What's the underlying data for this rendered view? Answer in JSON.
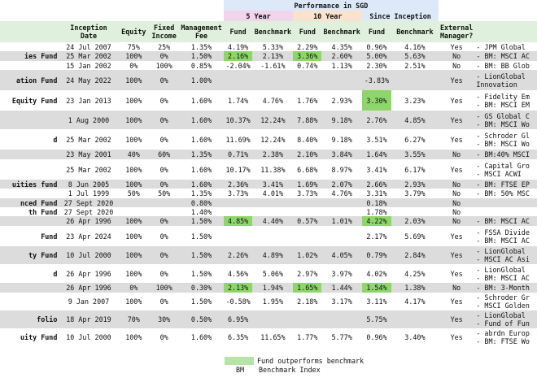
{
  "header": {
    "performance_title": "Performance in SGD",
    "period_5y": "5 Year",
    "period_10y": "10 Year",
    "period_since": "Since Inception",
    "col_inception": "Inception Date",
    "col_equity": "Equity",
    "col_fixed": "Fixed Income",
    "col_mgmt": "Management Fee",
    "col_fund": "Fund",
    "col_benchmark": "Benchmark",
    "col_external": "External Manager?"
  },
  "rows": [
    {
      "name": "",
      "date": "24 Jul 2007",
      "eq": "75%",
      "fi": "25%",
      "fee": "1.35%",
      "f5": "4.19%",
      "b5": "5.33%",
      "f10": "2.29%",
      "b10": "4.35%",
      "fs": "0.96%",
      "bs": "4.16%",
      "ext": "Yes",
      "notes": "- JPM Global ",
      "hl": [],
      "gray": false
    },
    {
      "name": "ies Fund",
      "date": "25 Mar 2002",
      "eq": "100%",
      "fi": "0%",
      "fee": "1.50%",
      "f5": "2.16%",
      "b5": "2.13%",
      "f10": "3.36%",
      "b10": "2.60%",
      "fs": "5.00%",
      "bs": "5.63%",
      "ext": "No",
      "notes": "- BM: MSCI AC",
      "hl": [
        "f5",
        "f10"
      ],
      "gray": true
    },
    {
      "name": "",
      "date": "15 Jan 2002",
      "eq": "0%",
      "fi": "100%",
      "fee": "0.85%",
      "f5": "-2.04%",
      "b5": "-1.61%",
      "f10": "0.74%",
      "b10": "1.13%",
      "fs": "2.30%",
      "bs": "2.51%",
      "ext": "No",
      "notes": "- BM: BB Glob",
      "hl": [],
      "gray": false
    },
    {
      "name": "ation Fund",
      "date": "24 May 2022",
      "eq": "100%",
      "fi": "0%",
      "fee": "1.00%",
      "f5": "",
      "b5": "",
      "f10": "",
      "b10": "",
      "fs": "-3.83%",
      "bs": "",
      "ext": "Yes",
      "notes": "- LionGlobal\nInnovation",
      "hl": [],
      "gray": true
    },
    {
      "name": "Equity Fund",
      "date": "23 Jan 2013",
      "eq": "100%",
      "fi": "0%",
      "fee": "1.60%",
      "f5": "1.74%",
      "b5": "4.76%",
      "f10": "1.76%",
      "b10": "2.93%",
      "fs": "3.30%",
      "bs": "3.23%",
      "ext": "Yes",
      "notes": "- Fidelity Em\n- BM: MSCI EM",
      "hl": [
        "fs"
      ],
      "gray": false
    },
    {
      "name": "",
      "date": "1 Aug 2000",
      "eq": "100%",
      "fi": "0%",
      "fee": "1.60%",
      "f5": "10.37%",
      "b5": "12.24%",
      "f10": "7.88%",
      "b10": "9.18%",
      "fs": "2.76%",
      "bs": "4.85%",
      "ext": "Yes",
      "notes": "- GS Global C\n- BM: MSCI Wo",
      "hl": [],
      "gray": true
    },
    {
      "name": "d",
      "date": "25 Mar 2002",
      "eq": "100%",
      "fi": "0%",
      "fee": "1.60%",
      "f5": "11.69%",
      "b5": "12.24%",
      "f10": "8.40%",
      "b10": "9.18%",
      "fs": "3.51%",
      "bs": "6.27%",
      "ext": "Yes",
      "notes": "- Schroder Gl\n- BM: MSCI Wo",
      "hl": [],
      "gray": false
    },
    {
      "name": "",
      "date": "23 May 2001",
      "eq": "40%",
      "fi": "60%",
      "fee": "1.35%",
      "f5": "0.71%",
      "b5": "2.38%",
      "f10": "2.10%",
      "b10": "3.84%",
      "fs": "1.64%",
      "bs": "3.55%",
      "ext": "No",
      "notes": "- BM:40% MSCI",
      "hl": [],
      "gray": true
    },
    {
      "name": "",
      "date": "25 Mar 2002",
      "eq": "100%",
      "fi": "0%",
      "fee": "1.60%",
      "f5": "10.17%",
      "b5": "11.38%",
      "f10": "6.68%",
      "b10": "8.97%",
      "fs": "3.41%",
      "bs": "6.17%",
      "ext": "Yes",
      "notes": "- Capital Gro\n- MSCI ACWI",
      "hl": [],
      "gray": false
    },
    {
      "name": "uities fund",
      "date": "8 Jun 2005",
      "eq": "100%",
      "fi": "0%",
      "fee": "1.60%",
      "f5": "2.36%",
      "b5": "3.41%",
      "f10": "1.69%",
      "b10": "2.07%",
      "fs": "2.66%",
      "bs": "2.93%",
      "ext": "No",
      "notes": "- BM: FTSE EP",
      "hl": [],
      "gray": true
    },
    {
      "name": "",
      "date": "1 Jul 1999",
      "eq": "50%",
      "fi": "50%",
      "fee": "1.35%",
      "f5": "3.73%",
      "b5": "4.01%",
      "f10": "3.73%",
      "b10": "4.76%",
      "fs": "3.31%",
      "bs": "3.79%",
      "ext": "No",
      "notes": "- BM: 50% MSC",
      "hl": [],
      "gray": false
    },
    {
      "name": "nced Fund",
      "date": "27 Sept 2020",
      "eq": "",
      "fi": "",
      "fee": "0.80%",
      "f5": "",
      "b5": "",
      "f10": "",
      "b10": "",
      "fs": "0.18%",
      "bs": "",
      "ext": "No",
      "notes": "",
      "hl": [],
      "gray": true
    },
    {
      "name": "th Fund",
      "date": "27 Sept 2020",
      "eq": "",
      "fi": "",
      "fee": "1.40%",
      "f5": "",
      "b5": "",
      "f10": "",
      "b10": "",
      "fs": "1.78%",
      "bs": "",
      "ext": "No",
      "notes": "",
      "hl": [],
      "gray": false
    },
    {
      "name": "",
      "date": "26 Apr 1996",
      "eq": "100%",
      "fi": "0%",
      "fee": "1.50%",
      "f5": "4.85%",
      "b5": "4.40%",
      "f10": "0.57%",
      "b10": "1.01%",
      "fs": "4.22%",
      "bs": "2.03%",
      "ext": "No",
      "notes": "- BM: MSCI AC",
      "hl": [
        "f5",
        "fs"
      ],
      "gray": true
    },
    {
      "name": "Fund",
      "date": "23 Apr 2024",
      "eq": "100%",
      "fi": "0%",
      "fee": "1.50%",
      "f5": "",
      "b5": "",
      "f10": "",
      "b10": "",
      "fs": "2.17%",
      "bs": "5.69%",
      "ext": "Yes",
      "notes": "- FSSA Divide\n- BM: MSCI AC",
      "hl": [],
      "gray": false
    },
    {
      "name": "ty Fund",
      "date": "10 Jul 2000",
      "eq": "100%",
      "fi": "0%",
      "fee": "1.50%",
      "f5": "2.26%",
      "b5": "4.89%",
      "f10": "1.02%",
      "b10": "4.05%",
      "fs": "0.79%",
      "bs": "2.84%",
      "ext": "Yes",
      "notes": "- LionGlobal\n- MSCI AC Asi",
      "hl": [],
      "gray": true
    },
    {
      "name": "d",
      "date": "26 Apr 1996",
      "eq": "100%",
      "fi": "0%",
      "fee": "1.50%",
      "f5": "4.56%",
      "b5": "5.06%",
      "f10": "2.97%",
      "b10": "3.97%",
      "fs": "4.02%",
      "bs": "4.25%",
      "ext": "Yes",
      "notes": "- LionGlobal\n- BM: MSCI AC",
      "hl": [],
      "gray": false
    },
    {
      "name": "",
      "date": "26 Apr 1996",
      "eq": "0%",
      "fi": "100%",
      "fee": "0.30%",
      "f5": "2.13%",
      "b5": "1.94%",
      "f10": "1.65%",
      "b10": "1.44%",
      "fs": "1.54%",
      "bs": "1.38%",
      "ext": "No",
      "notes": "- BM: 3-Month",
      "hl": [
        "f5",
        "f10",
        "fs"
      ],
      "gray": true
    },
    {
      "name": "",
      "date": "9 Jan 2007",
      "eq": "100%",
      "fi": "0%",
      "fee": "1.50%",
      "f5": "-0.58%",
      "b5": "1.95%",
      "f10": "2.18%",
      "b10": "3.17%",
      "fs": "3.11%",
      "bs": "4.17%",
      "ext": "Yes",
      "notes": "- Schroder Gr\n- MSCI Golden",
      "hl": [],
      "gray": false
    },
    {
      "name": "folio",
      "date": "18 Apr 2019",
      "eq": "70%",
      "fi": "30%",
      "fee": "0.50%",
      "f5": "6.95%",
      "b5": "",
      "f10": "",
      "b10": "",
      "fs": "5.75%",
      "bs": "",
      "ext": "Yes",
      "notes": "- LionGlobal\n- Fund of Fun",
      "hl": [],
      "gray": true
    },
    {
      "name": "uity Fund",
      "date": "10 Jul 2000",
      "eq": "100%",
      "fi": "0%",
      "fee": "1.60%",
      "f5": "6.35%",
      "b5": "11.65%",
      "f10": "1.77%",
      "b10": "5.77%",
      "fs": "0.96%",
      "bs": "3.40%",
      "ext": "Yes",
      "notes": "- abrdn Europ\n- BM: FTSE Wo",
      "hl": [],
      "gray": false
    }
  ],
  "legend": {
    "highlight_label": "Fund outperforms benchmark",
    "bm_abbr": "BM",
    "bm_label": "Benchmark Index"
  }
}
